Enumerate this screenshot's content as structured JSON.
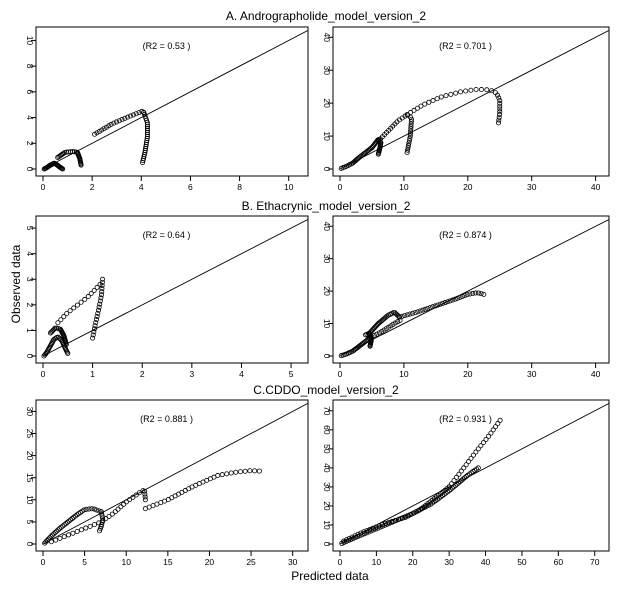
{
  "chart_data": {
    "figure": {
      "ylabel": "Observed data",
      "xlabel": "Predicted data"
    },
    "sections": [
      {
        "title": "A. Andrographolide_model_version_2"
      },
      {
        "title": "B. Ethacrynic_model_version_2"
      },
      {
        "title": "C.CDDO_model_version_2"
      }
    ],
    "panels": [
      {
        "type": "scatter",
        "annotation": "(R2 = 0.53 )",
        "xlim": [
          0,
          10.5
        ],
        "ylim": [
          0,
          10.5
        ],
        "xticks": [
          0,
          2,
          4,
          6,
          8,
          10
        ],
        "yticks": [
          0,
          2,
          4,
          6,
          8,
          10
        ],
        "reference_line": "y = x",
        "clusters": [
          {
            "x": [
              0.05,
              0.15,
              0.3,
              0.45,
              0.55,
              0.65,
              0.72,
              0.8
            ],
            "y": [
              0.0,
              0.1,
              0.3,
              0.45,
              0.35,
              0.2,
              0.1,
              0.0
            ],
            "points": 26
          },
          {
            "x": [
              0.6,
              0.9,
              1.2,
              1.4,
              1.5,
              1.55
            ],
            "y": [
              0.9,
              1.3,
              1.35,
              1.3,
              0.8,
              0.3
            ],
            "points": 26
          },
          {
            "x": [
              2.1,
              2.8,
              3.4,
              3.8,
              4.05,
              4.1
            ],
            "y": [
              2.7,
              3.5,
              4.0,
              4.3,
              4.5,
              4.4
            ],
            "points": 20
          },
          {
            "x": [
              4.1,
              4.25,
              4.25,
              4.15,
              4.05
            ],
            "y": [
              4.4,
              3.6,
              2.5,
              1.3,
              0.5
            ],
            "points": 26
          }
        ]
      },
      {
        "type": "scatter",
        "annotation": "(R2 = 0.701 )",
        "xlim": [
          0,
          41
        ],
        "ylim": [
          0,
          41
        ],
        "xticks": [
          0,
          10,
          20,
          30,
          40
        ],
        "yticks": [
          0,
          10,
          20,
          30,
          40
        ],
        "reference_line": "y = x",
        "clusters": [
          {
            "x": [
              0.2,
              1.0,
              2.0,
              3.0,
              4.0,
              5.0
            ],
            "y": [
              0.2,
              0.8,
              1.8,
              3.5,
              5.0,
              6.5
            ],
            "points": 24
          },
          {
            "x": [
              5.0,
              6.0,
              6.4,
              6.2,
              6.0
            ],
            "y": [
              6.5,
              9.0,
              8.0,
              6.0,
              4.5
            ],
            "points": 22
          },
          {
            "x": [
              6.0,
              7.5,
              9.0,
              10.5,
              11.2,
              11.0,
              10.5
            ],
            "y": [
              8.5,
              11.5,
              14.5,
              16.5,
              15.5,
              10.0,
              5.0
            ],
            "points": 30
          },
          {
            "x": [
              10.5,
              13.0,
              16.0,
              19.0,
              21.5,
              23.5,
              24.5,
              25.0,
              25.0,
              24.8
            ],
            "y": [
              16.5,
              19.5,
              22.0,
              23.5,
              24.2,
              24.0,
              23.0,
              21.0,
              17.0,
              14.0
            ],
            "points": 32
          }
        ]
      },
      {
        "type": "scatter",
        "annotation": "(R2 = 0.64 )",
        "xlim": [
          0,
          5.2
        ],
        "ylim": [
          0,
          5.2
        ],
        "xticks": [
          0,
          1,
          2,
          3,
          4,
          5
        ],
        "yticks": [
          0,
          1,
          2,
          3,
          4,
          5
        ],
        "reference_line": "y = x",
        "clusters": [
          {
            "x": [
              0.02,
              0.08,
              0.15,
              0.22,
              0.3,
              0.38,
              0.45,
              0.5
            ],
            "y": [
              0.0,
              0.15,
              0.4,
              0.65,
              0.75,
              0.6,
              0.3,
              0.1
            ],
            "points": 30
          },
          {
            "x": [
              0.15,
              0.25,
              0.35,
              0.42,
              0.47
            ],
            "y": [
              0.9,
              1.1,
              1.05,
              0.8,
              0.45
            ],
            "points": 24
          },
          {
            "x": [
              0.3,
              0.5,
              0.7,
              0.9,
              1.05,
              1.15
            ],
            "y": [
              1.3,
              1.7,
              2.0,
              2.3,
              2.6,
              2.8
            ],
            "points": 14
          },
          {
            "x": [
              1.2,
              1.18,
              1.12,
              1.05,
              1.0
            ],
            "y": [
              3.0,
              2.4,
              1.8,
              1.2,
              0.7
            ],
            "points": 20
          }
        ]
      },
      {
        "type": "scatter",
        "annotation": "(R2 = 0.874 )",
        "xlim": [
          0,
          41
        ],
        "ylim": [
          0,
          41
        ],
        "xticks": [
          0,
          10,
          20,
          30,
          40
        ],
        "yticks": [
          0,
          10,
          20,
          30,
          40
        ],
        "reference_line": "y = x",
        "clusters": [
          {
            "x": [
              0.2,
              1.0,
              2.0,
              3.0,
              4.0,
              4.6
            ],
            "y": [
              0.1,
              0.6,
              1.5,
              3.0,
              4.5,
              5.5
            ],
            "points": 22
          },
          {
            "x": [
              4.0,
              4.6,
              4.9,
              4.7
            ],
            "y": [
              6.5,
              7.0,
              5.0,
              3.0
            ],
            "points": 18
          },
          {
            "x": [
              4.6,
              6.0,
              7.5,
              8.5,
              9.3
            ],
            "y": [
              7.0,
              10.0,
              12.5,
              13.5,
              12.0
            ],
            "points": 26
          },
          {
            "x": [
              4.6,
              6.5,
              8.5,
              9.4
            ],
            "y": [
              5.5,
              7.5,
              10.0,
              11.0
            ],
            "points": 14
          },
          {
            "x": [
              9.3,
              12.0,
              15.0,
              18.0,
              20.0,
              21.5,
              22.5
            ],
            "y": [
              12.0,
              13.5,
              15.5,
              17.5,
              19.0,
              19.5,
              19.0
            ],
            "points": 34
          }
        ]
      },
      {
        "type": "scatter",
        "annotation": "(R2 = 0.881 )",
        "xlim": [
          0,
          31
        ],
        "ylim": [
          0,
          31
        ],
        "xticks": [
          0,
          5,
          10,
          15,
          20,
          25,
          30
        ],
        "yticks": [
          0,
          5,
          10,
          15,
          20,
          25,
          30
        ],
        "reference_line": "y = x",
        "clusters": [
          {
            "x": [
              0.2,
              1.0,
              2.0,
              3.0,
              4.0,
              5.0,
              6.0,
              7.0
            ],
            "y": [
              0.2,
              1.8,
              3.5,
              5.0,
              6.5,
              7.8,
              8.0,
              7.3
            ],
            "points": 34
          },
          {
            "x": [
              7.0,
              7.2,
              7.0,
              6.8
            ],
            "y": [
              7.3,
              5.5,
              4.0,
              3.0
            ],
            "points": 10
          },
          {
            "x": [
              1.0,
              3.0,
              5.0,
              7.0,
              8.5,
              10.0,
              11.5,
              12.2,
              12.3
            ],
            "y": [
              0.5,
              2.0,
              3.5,
              5.0,
              7.0,
              9.5,
              11.5,
              12.3,
              10.0
            ],
            "points": 30
          },
          {
            "x": [
              12.3,
              15.0,
              18.0,
              21.0,
              23.0,
              25.0,
              26.0
            ],
            "y": [
              8.0,
              10.0,
              13.0,
              15.5,
              16.2,
              16.6,
              16.5
            ],
            "points": 30
          }
        ]
      },
      {
        "type": "scatter",
        "annotation": "(R2 = 0.931 )",
        "xlim": [
          0,
          72
        ],
        "ylim": [
          0,
          72
        ],
        "xticks": [
          0,
          10,
          20,
          30,
          40,
          50,
          60,
          70
        ],
        "yticks": [
          0,
          10,
          20,
          30,
          40,
          50,
          60,
          70
        ],
        "reference_line": "y = x",
        "clusters": [
          {
            "x": [
              0.5,
              5.0,
              10.0,
              15.0,
              20.0,
              25.0,
              30.0,
              35.0,
              38.0
            ],
            "y": [
              0.3,
              4.0,
              8.0,
              12.0,
              16.0,
              21.0,
              28.0,
              36.0,
              40.0
            ],
            "points": 70
          },
          {
            "x": [
              1.0,
              6.0,
              12.0,
              18.0,
              22.0,
              26.0,
              30.0
            ],
            "y": [
              1.5,
              6.0,
              10.5,
              14.0,
              18.0,
              24.0,
              30.0
            ],
            "points": 40
          },
          {
            "x": [
              30.0,
              34.0,
              38.0,
              41.0,
              44.0
            ],
            "y": [
              30.0,
              40.0,
              50.0,
              57.0,
              65.0
            ],
            "points": 22
          }
        ]
      }
    ]
  }
}
